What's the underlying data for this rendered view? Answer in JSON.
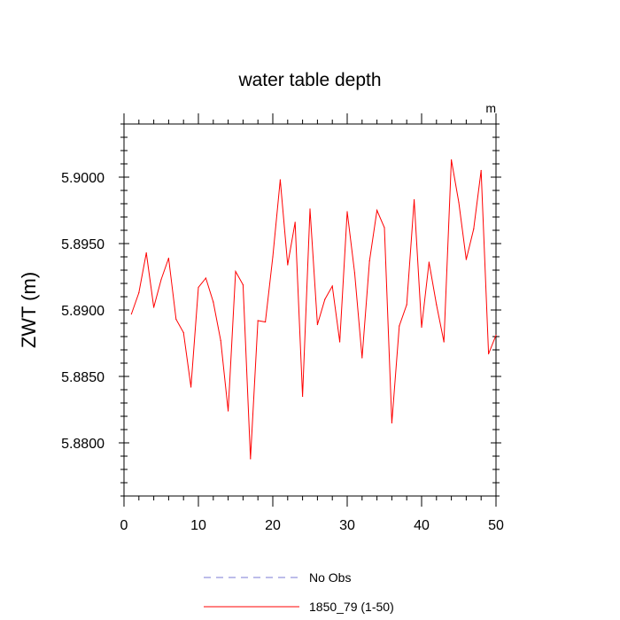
{
  "chart_data": {
    "type": "line",
    "title": "water table depth",
    "unit_label": "m",
    "ylabel": "ZWT  (m)",
    "xlabel": "",
    "xlim": [
      0,
      50
    ],
    "ylim": [
      5.876,
      5.904
    ],
    "x_ticks": [
      0,
      10,
      20,
      30,
      40,
      50
    ],
    "x_tick_labels": [
      "0",
      "10",
      "20",
      "30",
      "40",
      "50"
    ],
    "y_ticks": [
      5.88,
      5.885,
      5.89,
      5.895,
      5.9
    ],
    "y_tick_labels": [
      "5.8800",
      "5.8850",
      "5.8900",
      "5.8950",
      "5.9000"
    ],
    "grid": false,
    "legend_position": "bottom",
    "legend": [
      {
        "label": "No Obs",
        "color": "#7b7bd6",
        "dash": true
      },
      {
        "label": "1850_79 (1-50)",
        "color": "#ff0000",
        "dash": false
      }
    ],
    "series": [
      {
        "name": "1850_79 (1-50)",
        "color": "#ff0000",
        "x": [
          1,
          2,
          3,
          4,
          5,
          6,
          7,
          8,
          9,
          10,
          11,
          12,
          13,
          14,
          15,
          16,
          17,
          18,
          19,
          20,
          21,
          22,
          23,
          24,
          25,
          26,
          27,
          28,
          29,
          30,
          31,
          32,
          33,
          34,
          35,
          36,
          37,
          38,
          39,
          40,
          41,
          42,
          43,
          44,
          45,
          46,
          47,
          48,
          49,
          50
        ],
        "values": [
          5.8897,
          5.8913,
          5.8943,
          5.8902,
          5.8923,
          5.8939,
          5.8893,
          5.8883,
          5.8842,
          5.8917,
          5.8924,
          5.8906,
          5.8877,
          5.8824,
          5.8929,
          5.8919,
          5.8788,
          5.8892,
          5.8891,
          5.894,
          5.8998,
          5.8934,
          5.8966,
          5.8835,
          5.8976,
          5.8889,
          5.8908,
          5.8918,
          5.8876,
          5.8974,
          5.8928,
          5.8864,
          5.8937,
          5.8975,
          5.8962,
          5.8815,
          5.8888,
          5.8904,
          5.8983,
          5.8887,
          5.8936,
          5.8904,
          5.8876,
          5.9013,
          5.8981,
          5.8938,
          5.8961,
          5.9005,
          5.8867,
          5.8881
        ]
      }
    ]
  }
}
